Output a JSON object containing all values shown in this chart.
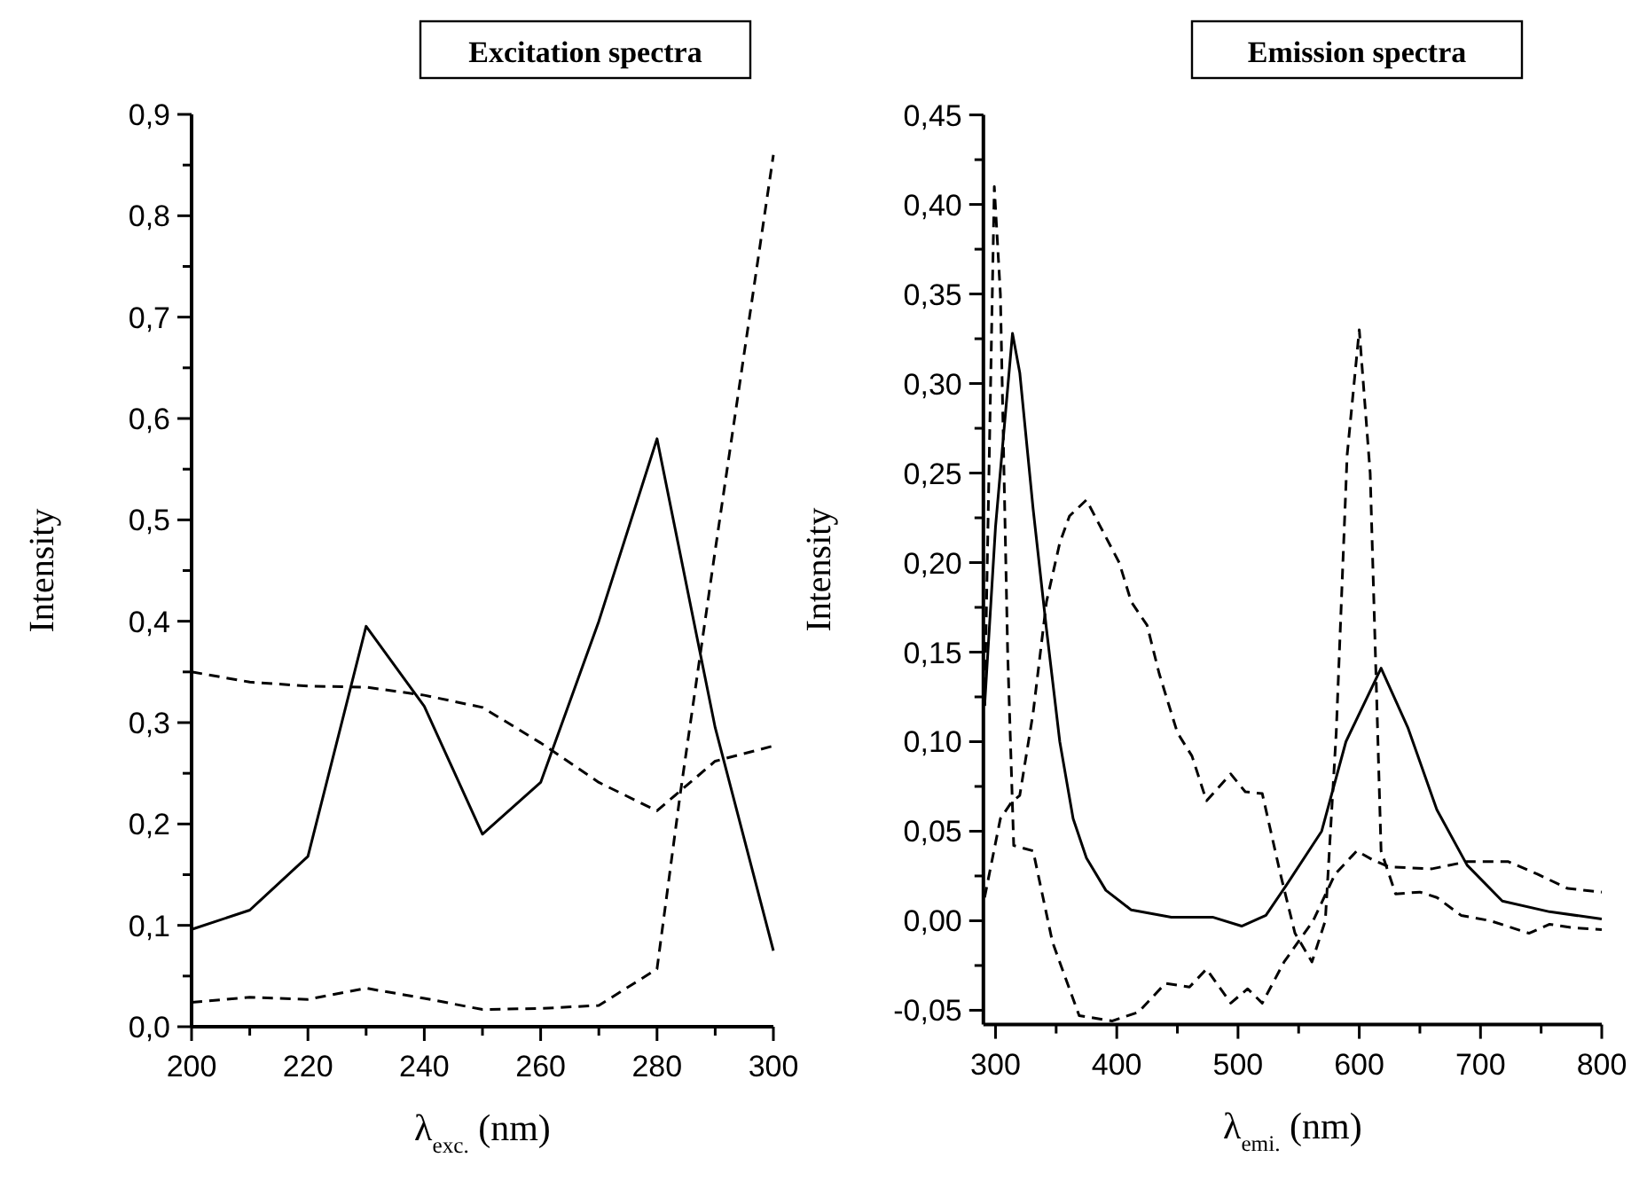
{
  "chart_data": [
    {
      "type": "line",
      "title": "Excitation spectra",
      "xlabel": "λ$_{exc.}$ (nm)",
      "ylabel": "Intensity",
      "xlim": [
        200,
        300
      ],
      "ylim": [
        0,
        0.9
      ],
      "xticks": [
        200,
        {
          "value": 210,
          "label": null
        },
        220,
        {
          "value": 230,
          "label": null
        },
        240,
        {
          "value": 250,
          "label": null
        },
        260,
        {
          "value": 270,
          "label": null
        },
        280,
        {
          "value": 290,
          "label": null
        },
        300
      ],
      "yticks": [
        {
          "value": 0,
          "label": "0,0"
        },
        {
          "value": 0.05,
          "label": null
        },
        {
          "value": 0.1,
          "label": "0,1"
        },
        {
          "value": 0.15,
          "label": null
        },
        {
          "value": 0.2,
          "label": "0,2"
        },
        {
          "value": 0.25,
          "label": null
        },
        {
          "value": 0.3,
          "label": "0,3"
        },
        {
          "value": 0.35,
          "label": null
        },
        {
          "value": 0.4,
          "label": "0,4"
        },
        {
          "value": 0.45,
          "label": null
        },
        {
          "value": 0.5,
          "label": "0,5"
        },
        {
          "value": 0.55,
          "label": null
        },
        {
          "value": 0.6,
          "label": "0,6"
        },
        {
          "value": 0.65,
          "label": null
        },
        {
          "value": 0.7,
          "label": "0,7"
        },
        {
          "value": 0.75,
          "label": null
        },
        {
          "value": 0.8,
          "label": "0,8"
        },
        {
          "value": 0.85,
          "label": null
        },
        {
          "value": 0.9,
          "label": "0,9"
        }
      ],
      "grid": false,
      "marker": "none",
      "series": [
        {
          "color": "#000000",
          "line_style": "solid",
          "x": [
            200,
            210,
            220,
            230,
            240,
            250,
            260,
            270,
            280,
            290,
            300
          ],
          "values": [
            0.096,
            0.115,
            0.168,
            0.395,
            0.316,
            0.19,
            0.241,
            0.4,
            0.58,
            0.295,
            0.075
          ]
        },
        {
          "color": "#000000",
          "line_style": "dashed",
          "x": [
            200,
            210,
            220,
            230,
            240,
            250,
            260,
            270,
            280,
            290,
            300
          ],
          "values": [
            0.35,
            0.34,
            0.336,
            0.335,
            0.327,
            0.315,
            0.28,
            0.241,
            0.213,
            0.262,
            0.277
          ]
        },
        {
          "color": "#000000",
          "line_style": "dashed",
          "x": [
            200,
            210,
            220,
            230,
            240,
            250,
            260,
            270,
            280,
            284,
            290,
            300
          ],
          "values": [
            0.024,
            0.029,
            0.027,
            0.038,
            0.028,
            0.017,
            0.018,
            0.021,
            0.057,
            0.23,
            0.47,
            0.86
          ]
        }
      ]
    },
    {
      "type": "line",
      "title": "Emission spectra",
      "xlabel": "λ$_{emi.}$ (nm)",
      "ylabel": "Intensity",
      "xlim": [
        290,
        800
      ],
      "ylim": [
        -0.058,
        0.45
      ],
      "xticks": [
        300,
        {
          "value": 350,
          "label": null
        },
        400,
        {
          "value": 450,
          "label": null
        },
        500,
        {
          "value": 550,
          "label": null
        },
        600,
        {
          "value": 650,
          "label": null
        },
        700,
        {
          "value": 750,
          "label": null
        },
        800
      ],
      "yticks": [
        {
          "value": -0.05,
          "label": "-0,05"
        },
        {
          "value": -0.025,
          "label": null
        },
        {
          "value": 0,
          "label": "0,00"
        },
        {
          "value": 0.025,
          "label": null
        },
        {
          "value": 0.05,
          "label": "0,05"
        },
        {
          "value": 0.075,
          "label": null
        },
        {
          "value": 0.1,
          "label": "0,10"
        },
        {
          "value": 0.125,
          "label": null
        },
        {
          "value": 0.15,
          "label": "0,15"
        },
        {
          "value": 0.175,
          "label": null
        },
        {
          "value": 0.2,
          "label": "0,20"
        },
        {
          "value": 0.225,
          "label": null
        },
        {
          "value": 0.25,
          "label": "0,25"
        },
        {
          "value": 0.275,
          "label": null
        },
        {
          "value": 0.3,
          "label": "0,30"
        },
        {
          "value": 0.325,
          "label": null
        },
        {
          "value": 0.35,
          "label": "0,35"
        },
        {
          "value": 0.375,
          "label": null
        },
        {
          "value": 0.4,
          "label": "0,40"
        },
        {
          "value": 0.425,
          "label": null
        },
        {
          "value": 0.45,
          "label": "0,45"
        }
      ],
      "grid": false,
      "marker": "none",
      "series": [
        {
          "color": "#000000",
          "line_style": "solid",
          "x": [
            291,
            300,
            314,
            320,
            331,
            342,
            353,
            364,
            375,
            391,
            412,
            445,
            479,
            503,
            523,
            540,
            569,
            589,
            618,
            640,
            664,
            689,
            718,
            757,
            800
          ],
          "values": [
            0.12,
            0.22,
            0.328,
            0.306,
            0.23,
            0.163,
            0.1,
            0.057,
            0.035,
            0.017,
            0.006,
            0.002,
            0.002,
            -0.003,
            0.003,
            0.02,
            0.05,
            0.1,
            0.141,
            0.108,
            0.062,
            0.031,
            0.011,
            0.005,
            0.001
          ]
        },
        {
          "color": "#000000",
          "line_style": "dashed",
          "x": [
            291,
            299,
            304,
            310,
            315,
            331,
            347,
            369,
            396,
            418,
            440,
            460,
            474,
            494,
            508,
            520,
            538,
            562,
            580,
            598,
            611,
            625,
            660,
            689,
            723,
            747,
            772,
            800
          ],
          "values": [
            0.12,
            0.41,
            0.35,
            0.15,
            0.042,
            0.039,
            -0.012,
            -0.053,
            -0.056,
            -0.051,
            -0.035,
            -0.037,
            -0.027,
            -0.046,
            -0.038,
            -0.046,
            -0.023,
            0,
            0.026,
            0.039,
            0.034,
            0.03,
            0.029,
            0.033,
            0.033,
            0.026,
            0.018,
            0.016
          ]
        },
        {
          "color": "#000000",
          "line_style": "dashed",
          "x": [
            291,
            304,
            313,
            320,
            331,
            342,
            353,
            361,
            375,
            385,
            402,
            412,
            425,
            435,
            450,
            462,
            474,
            494,
            506,
            520,
            535,
            547,
            561,
            572,
            581,
            590,
            600,
            609,
            618,
            630,
            650,
            664,
            684,
            708,
            740,
            757,
            777,
            800
          ],
          "values": [
            0.013,
            0.057,
            0.066,
            0.07,
            0.116,
            0.178,
            0.211,
            0.226,
            0.235,
            0.222,
            0.2,
            0.178,
            0.165,
            0.138,
            0.105,
            0.092,
            0.067,
            0.082,
            0.072,
            0.071,
            0.026,
            -0.007,
            -0.023,
            0,
            0.105,
            0.26,
            0.33,
            0.25,
            0.039,
            0.015,
            0.016,
            0.013,
            0.003,
            0,
            -0.007,
            -0.002,
            -0.004,
            -0.005
          ]
        }
      ]
    }
  ]
}
